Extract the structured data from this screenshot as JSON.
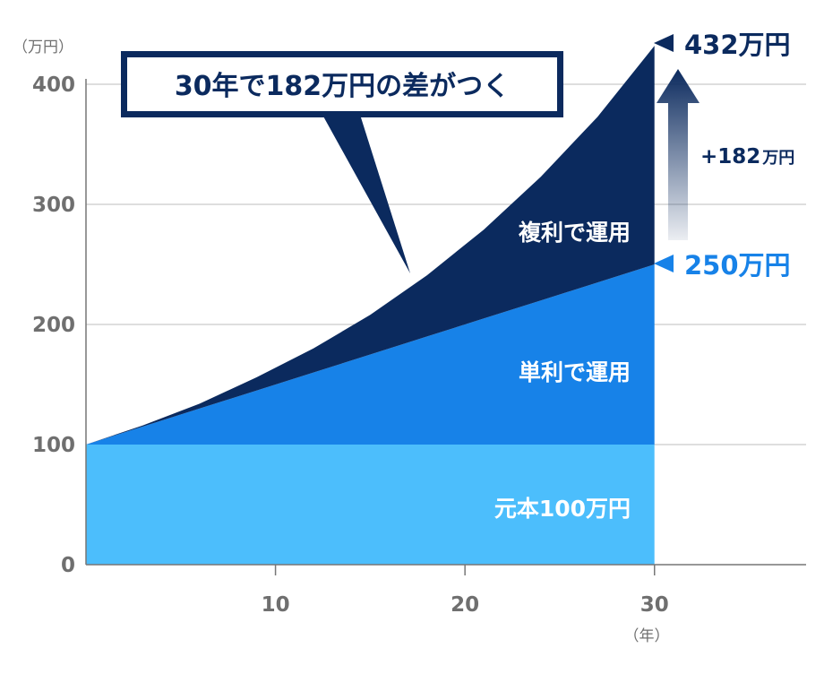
{
  "chart_data": {
    "type": "area",
    "title": "30年で182万円の差がつく",
    "xlabel": "（年）",
    "ylabel": "（万円）",
    "xlim": [
      0,
      38
    ],
    "ylim": [
      0,
      430
    ],
    "x_ticks": [
      "10",
      "20",
      "30"
    ],
    "y_ticks": [
      "0",
      "100",
      "200",
      "300",
      "400"
    ],
    "x": [
      0,
      3,
      6,
      9,
      12,
      15,
      18,
      21,
      24,
      27,
      30
    ],
    "series": [
      {
        "name": "元本100万円",
        "color": "#4cbefc",
        "values": [
          100,
          100,
          100,
          100,
          100,
          100,
          100,
          100,
          100,
          100,
          100
        ]
      },
      {
        "name": "単利で運用",
        "color": "#1782e8",
        "values": [
          100,
          115,
          130,
          145,
          160,
          175,
          190,
          205,
          220,
          235,
          250
        ]
      },
      {
        "name": "複利で運用",
        "color": "#0b2a5e",
        "values": [
          100,
          116,
          134,
          156,
          180,
          208,
          241,
          279,
          323,
          373,
          432
        ]
      }
    ],
    "annotations": {
      "compound_end": "432万円",
      "simple_end": "250万円",
      "difference": "+182",
      "difference_unit": "万円"
    },
    "grid": true
  }
}
